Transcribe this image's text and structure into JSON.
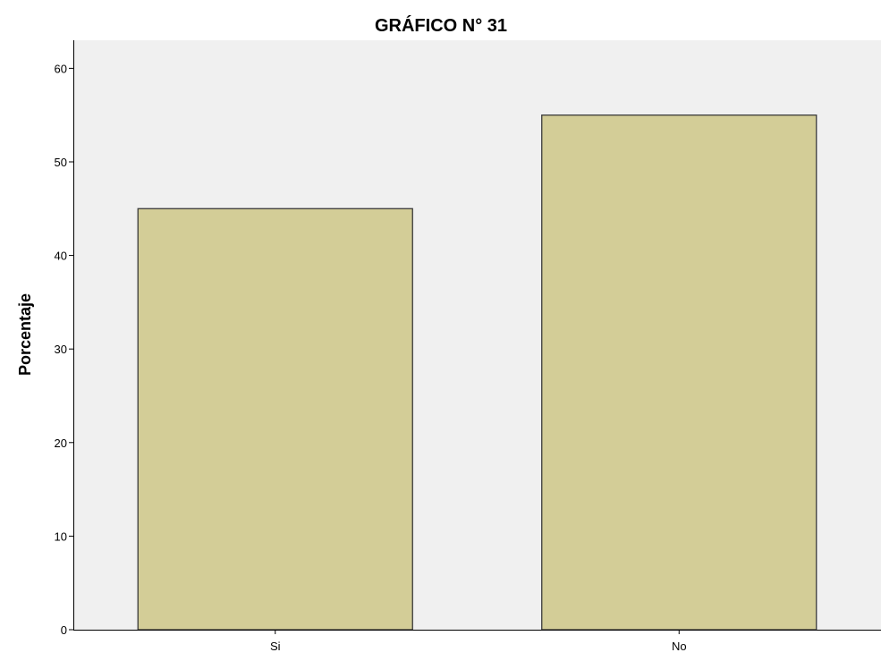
{
  "chart_data": {
    "type": "bar",
    "title": "GRÁFICO N° 31",
    "xlabel": "",
    "ylabel": "Porcentaje",
    "categories": [
      "Si",
      "No"
    ],
    "values": [
      45,
      55
    ],
    "ylim": [
      0,
      63
    ],
    "yticks": [
      "0",
      "10",
      "20",
      "30",
      "40",
      "50",
      "60"
    ],
    "grid": false,
    "legend": "none",
    "colors": {
      "bar_fill": "#d3cd97",
      "bar_stroke": "#3a3a3a",
      "plot_background": "#f0f0f0"
    }
  }
}
